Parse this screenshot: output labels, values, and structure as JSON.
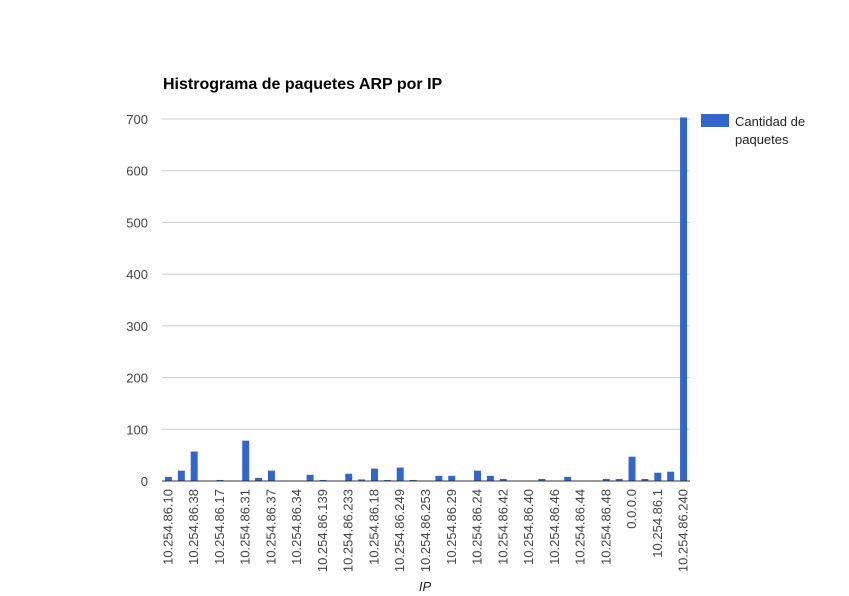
{
  "chart_data": {
    "type": "bar",
    "title": "Histrograma de paquetes ARP por IP",
    "xlabel": "IP",
    "ylabel": "",
    "ylim": [
      0,
      700
    ],
    "yticks": [
      0,
      100,
      200,
      300,
      400,
      500,
      600,
      700
    ],
    "grid": true,
    "legend_position": "right",
    "categories": [
      "10.254.86.10",
      "",
      "10.254.86.38",
      "",
      "10.254.86.17",
      "",
      "10.254.86.31",
      "",
      "10.254.86.37",
      "",
      "10.254.86.34",
      "",
      "10.254.86.139",
      "",
      "10.254.86.233",
      "",
      "10.254.86.18",
      "",
      "10.254.86.249",
      "",
      "10.254.86.253",
      "",
      "10.254.86.29",
      "",
      "10.254.86.24",
      "",
      "10.254.86.42",
      "",
      "10.254.86.40",
      "",
      "10.254.86.46",
      "",
      "10.254.86.44",
      "",
      "10.254.86.48",
      "",
      "0.0.0.0",
      "",
      "10.254.86.1",
      "",
      "10.254.86.240"
    ],
    "series": [
      {
        "name": "Cantidad de paquetes",
        "color": "#3366cc",
        "values": [
          8,
          20,
          57,
          0,
          2,
          1,
          78,
          6,
          20,
          0,
          1,
          12,
          2,
          0,
          14,
          3,
          24,
          2,
          26,
          2,
          0,
          10,
          10,
          0,
          20,
          10,
          4,
          1,
          0,
          4,
          0,
          8,
          0,
          0,
          4,
          4,
          47,
          4,
          16,
          18,
          703
        ]
      }
    ]
  }
}
